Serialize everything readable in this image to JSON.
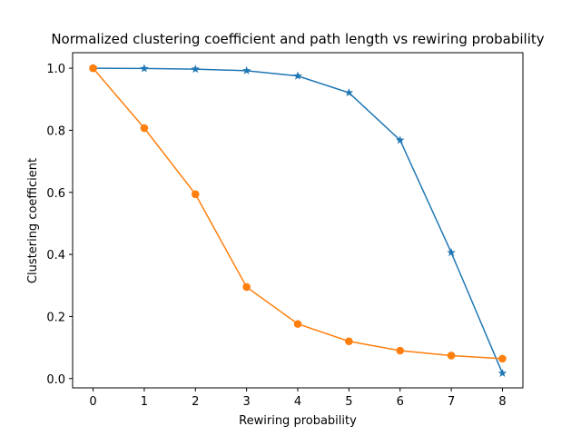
{
  "chart_data": {
    "type": "line",
    "title": "Normalized clustering coefficient and path length vs rewiring probability",
    "xlabel": "Rewiring probability",
    "ylabel": "Clustering coefficient",
    "x": [
      0,
      1,
      2,
      3,
      4,
      5,
      6,
      7,
      8
    ],
    "xlim": [
      -0.4,
      8.4
    ],
    "ylim": [
      -0.03,
      1.05
    ],
    "xticks": [
      0,
      1,
      2,
      3,
      4,
      5,
      6,
      7,
      8
    ],
    "yticks": [
      0.0,
      0.2,
      0.4,
      0.6,
      0.8,
      1.0
    ],
    "grid": false,
    "legend": "none",
    "series": [
      {
        "color": "#1f77b4",
        "marker": "star",
        "values": [
          1.0,
          0.999,
          0.997,
          0.992,
          0.975,
          0.921,
          0.768,
          0.406,
          0.017
        ]
      },
      {
        "color": "#ff7f0e",
        "marker": "circle",
        "values": [
          1.0,
          0.807,
          0.594,
          0.295,
          0.176,
          0.12,
          0.09,
          0.074,
          0.064
        ]
      }
    ]
  }
}
